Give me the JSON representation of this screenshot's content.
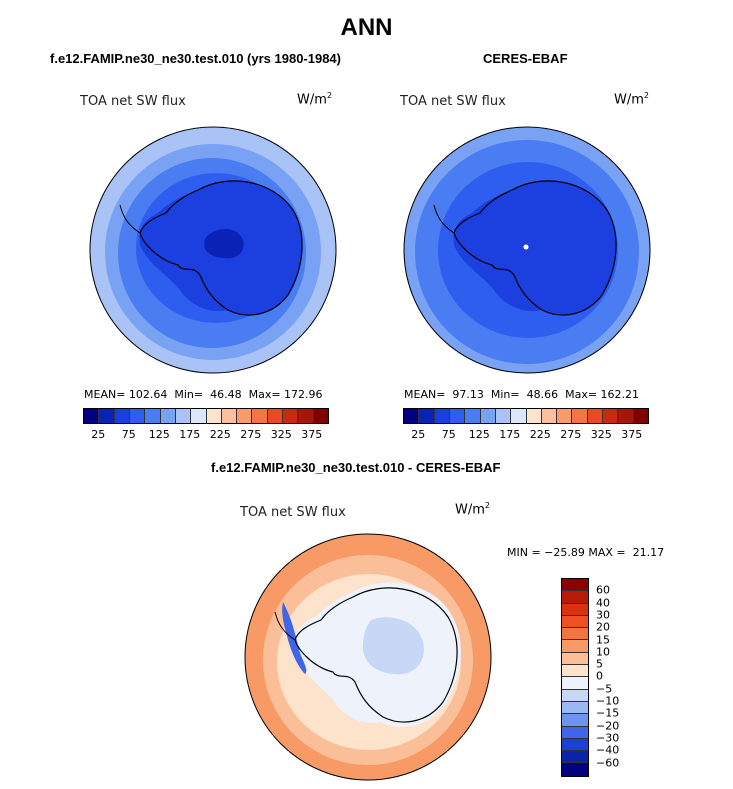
{
  "main_title": "ANN",
  "panels": [
    {
      "title": "f.e12.FAMIP.ne30_ne30.test.010 (yrs 1980-1984)",
      "field": "TOA net SW flux",
      "units_base": "W/m",
      "units_exp": "2",
      "stats": "MEAN= 102.64  Min=  46.48  Max= 172.96",
      "colorbar_labels": [
        "25",
        "75",
        "125",
        "175",
        "225",
        "275",
        "325",
        "375"
      ]
    },
    {
      "title": "CERES-EBAF",
      "field": "TOA net SW flux",
      "units_base": "W/m",
      "units_exp": "2",
      "stats": "MEAN=  97.13  Min=  48.66  Max= 162.21",
      "colorbar_labels": [
        "25",
        "75",
        "125",
        "175",
        "225",
        "275",
        "325",
        "375"
      ]
    },
    {
      "title": "f.e12.FAMIP.ne30_ne30.test.010 - CERES-EBAF",
      "field": "TOA net SW flux",
      "units_base": "W/m",
      "units_exp": "2",
      "stats": "MIN = −25.89 MAX =  21.17",
      "colorbar_labels": [
        "60",
        "40",
        "30",
        "20",
        "15",
        "10",
        "5",
        "0",
        "−5",
        "−10",
        "−15",
        "−20",
        "−30",
        "−40",
        "−60"
      ]
    }
  ],
  "colors": {
    "seq_scale": [
      "#000080",
      "#0a22b5",
      "#1c3fe0",
      "#2e5ef0",
      "#4a7cf2",
      "#7aa2f4",
      "#a9c3f6",
      "#dbe6fb",
      "#fde2cd",
      "#fbbf9c",
      "#f89a6e",
      "#f47446",
      "#e84a24",
      "#c92a10",
      "#a1180a",
      "#800000"
    ],
    "diff_scale": [
      "#8b0000",
      "#b81a08",
      "#d8320e",
      "#ee5022",
      "#f4743e",
      "#f79a66",
      "#fabf98",
      "#fde2cc",
      "#eef3fb",
      "#c6d8f6",
      "#9cb8f2",
      "#6f94ee",
      "#3f66e8",
      "#1d3fd6",
      "#0a23aa",
      "#000080"
    ]
  }
}
